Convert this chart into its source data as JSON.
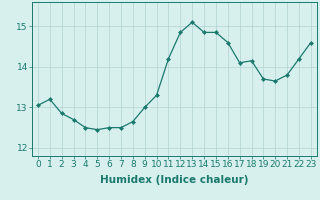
{
  "x": [
    0,
    1,
    2,
    3,
    4,
    5,
    6,
    7,
    8,
    9,
    10,
    11,
    12,
    13,
    14,
    15,
    16,
    17,
    18,
    19,
    20,
    21,
    22,
    23
  ],
  "y": [
    13.05,
    13.2,
    12.85,
    12.7,
    12.5,
    12.45,
    12.5,
    12.5,
    12.65,
    13.0,
    13.3,
    14.2,
    14.85,
    15.1,
    14.85,
    14.85,
    14.6,
    14.1,
    14.15,
    13.7,
    13.65,
    13.8,
    14.2,
    14.6
  ],
  "line_color": "#1a7a6e",
  "marker": "D",
  "marker_size": 2,
  "bg_color": "#d8f0ed",
  "grid_color": "#b8d8d4",
  "tick_color": "#1a7a6e",
  "xlabel": "Humidex (Indice chaleur)",
  "ylim": [
    11.8,
    15.6
  ],
  "xlim": [
    -0.5,
    23.5
  ],
  "yticks": [
    12,
    13,
    14,
    15
  ],
  "xticks": [
    0,
    1,
    2,
    3,
    4,
    5,
    6,
    7,
    8,
    9,
    10,
    11,
    12,
    13,
    14,
    15,
    16,
    17,
    18,
    19,
    20,
    21,
    22,
    23
  ],
  "xlabel_fontsize": 7.5,
  "tick_fontsize": 6.5
}
